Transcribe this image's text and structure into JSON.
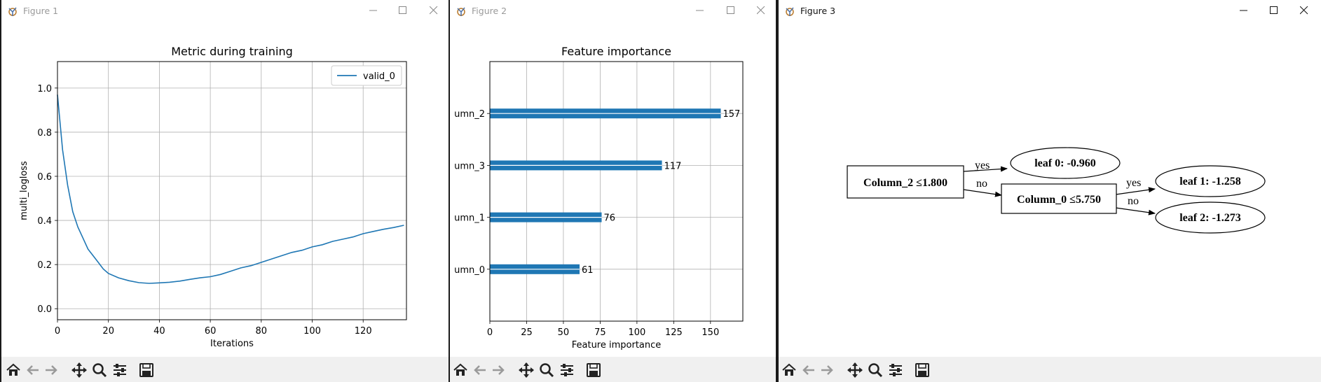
{
  "windows": [
    {
      "title": "Figure 1",
      "active": false
    },
    {
      "title": "Figure 2",
      "active": false
    },
    {
      "title": "Figure 3",
      "active": true
    }
  ],
  "toolbar_icons": [
    "home-icon",
    "back-arrow-icon",
    "forward-arrow-icon",
    "pan-icon",
    "zoom-icon",
    "configure-subplots-icon",
    "save-icon"
  ],
  "colors": {
    "series": "#1f77b4"
  },
  "chart_data": [
    {
      "type": "line",
      "title": "Metric during training",
      "xlabel": "Iterations",
      "ylabel": "multi_logloss",
      "xlim": [
        0,
        137
      ],
      "ylim": [
        -0.05,
        1.12
      ],
      "xticks": [
        "0",
        "20",
        "40",
        "60",
        "80",
        "100",
        "120"
      ],
      "yticks": [
        "0.0",
        "0.2",
        "0.4",
        "0.6",
        "0.8",
        "1.0"
      ],
      "xtick_values": [
        0,
        20,
        40,
        60,
        80,
        100,
        120
      ],
      "ytick_values": [
        0,
        0.2,
        0.4,
        0.6,
        0.8,
        1.0
      ],
      "grid": true,
      "legend": "top-right",
      "series": [
        {
          "name": "valid_0",
          "x": [
            0,
            2,
            4,
            6,
            8,
            10,
            12,
            14,
            16,
            18,
            20,
            24,
            28,
            32,
            36,
            40,
            44,
            48,
            52,
            56,
            60,
            64,
            68,
            72,
            76,
            80,
            84,
            88,
            92,
            96,
            100,
            104,
            108,
            112,
            116,
            120,
            124,
            128,
            132,
            136
          ],
          "y": [
            0.97,
            0.72,
            0.56,
            0.44,
            0.37,
            0.32,
            0.27,
            0.24,
            0.21,
            0.18,
            0.16,
            0.14,
            0.127,
            0.118,
            0.115,
            0.117,
            0.12,
            0.125,
            0.133,
            0.14,
            0.145,
            0.155,
            0.17,
            0.185,
            0.195,
            0.21,
            0.225,
            0.24,
            0.255,
            0.265,
            0.28,
            0.29,
            0.305,
            0.315,
            0.325,
            0.34,
            0.35,
            0.36,
            0.368,
            0.378
          ]
        }
      ]
    },
    {
      "type": "bar",
      "orientation": "horizontal",
      "title": "Feature importance",
      "xlabel": "Feature importance",
      "categories": [
        "umn_0",
        "umn_1",
        "umn_3",
        "umn_2"
      ],
      "values": [
        61,
        76,
        117,
        157
      ],
      "xlim": [
        0,
        172
      ],
      "xticks": [
        "0",
        "25",
        "50",
        "75",
        "100",
        "125",
        "150"
      ],
      "xtick_values": [
        0,
        25,
        50,
        75,
        100,
        125,
        150
      ],
      "grid": true
    }
  ],
  "tree": {
    "root": "Column_2 ≤1.800",
    "split": "Column_0 ≤5.750",
    "leaf0": "leaf 0: -0.960",
    "leaf1": "leaf 1: -1.258",
    "leaf2": "leaf 2: -1.273",
    "edge_yes": "yes",
    "edge_no": "no"
  }
}
